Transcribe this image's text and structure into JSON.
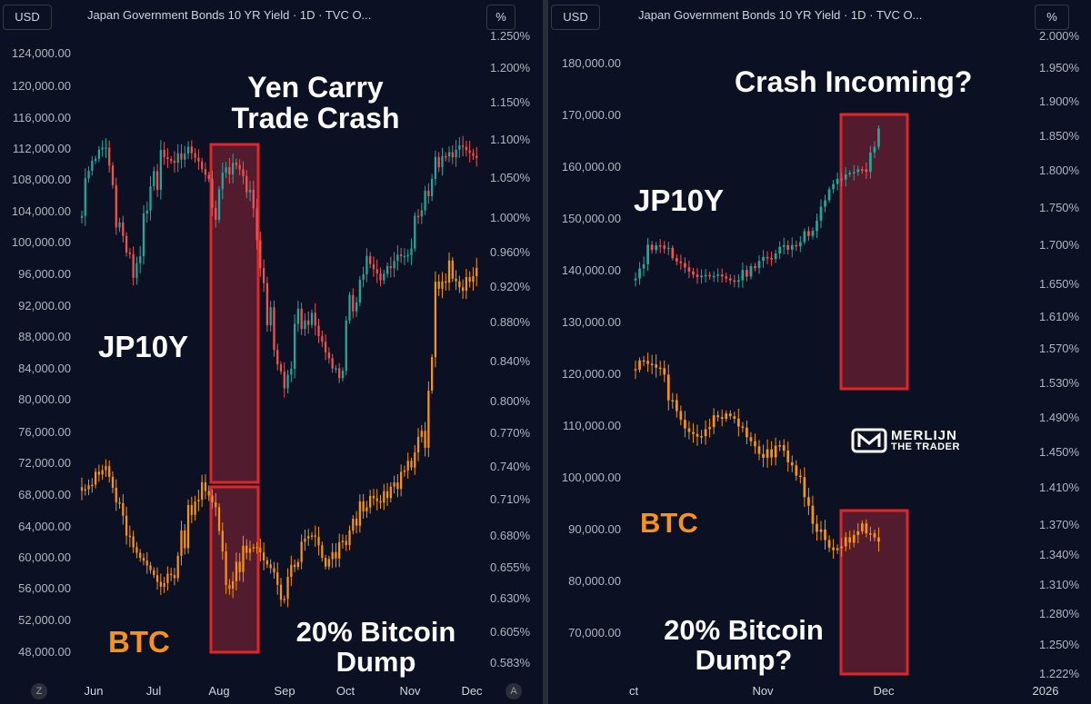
{
  "colors": {
    "background": "#0b1123",
    "btc": "#f7931a",
    "up": "#26a69a",
    "down": "#ef5350",
    "highlight_fill": "#6b1f33",
    "highlight_stroke": "#e0252b",
    "text": "#ffffff"
  },
  "chart_data": [
    {
      "type": "line",
      "panel": "left",
      "title": "Japan Government Bonds 10 YR Yield · 1D · TVC O...",
      "currency_button": "USD",
      "percent_button": "%",
      "left_axis_ticks": [
        "124,000.00",
        "120,000.00",
        "116,000.00",
        "112,000.00",
        "108,000.00",
        "104,000.00",
        "100,000.00",
        "96,000.00",
        "92,000.00",
        "88,000.00",
        "84,000.00",
        "80,000.00",
        "76,000.00",
        "72,000.00",
        "68,000.00",
        "64,000.00",
        "60,000.00",
        "56,000.00",
        "52,000.00",
        "48,000.00"
      ],
      "right_axis_ticks": [
        "1.250%",
        "1.200%",
        "1.150%",
        "1.100%",
        "1.050%",
        "1.000%",
        "0.960%",
        "0.920%",
        "0.880%",
        "0.840%",
        "0.800%",
        "0.770%",
        "0.740%",
        "0.710%",
        "0.680%",
        "0.655%",
        "0.630%",
        "0.605%",
        "0.583%"
      ],
      "x_ticks": [
        "Jun",
        "Jul",
        "Aug",
        "Sep",
        "Oct",
        "Nov",
        "Dec"
      ],
      "corner_left": "Z",
      "corner_right": "A",
      "annotations": {
        "top": "Yen Carry\nTrade Crash",
        "jp": "JP10Y",
        "btc": "BTC",
        "bottom": "20% Bitcoin\nDump"
      },
      "series": [
        {
          "name": "JP10Y",
          "axis": "right",
          "values": [
            1.0,
            1.075,
            1.09,
            0.99,
            0.935,
            1.0,
            1.08,
            1.07,
            1.09,
            1.065,
            1.005,
            1.075,
            1.055,
            0.975,
            0.875,
            0.81,
            0.875,
            0.885,
            0.85,
            0.825,
            0.905,
            0.95,
            0.93,
            0.955,
            0.955,
            1.02,
            1.065,
            1.08,
            1.09,
            1.075
          ]
        },
        {
          "name": "BTC",
          "axis": "left",
          "values": [
            69000,
            69500,
            71500,
            66000,
            61000,
            59000,
            56500,
            58000,
            66000,
            69000,
            66500,
            56000,
            60000,
            61500,
            58500,
            54000,
            60500,
            63500,
            58500,
            61000,
            64000,
            68000,
            67000,
            69000,
            72000,
            75000,
            91000,
            96000,
            94000,
            97000
          ]
        }
      ],
      "highlight_boxes": [
        {
          "series": "JP10Y",
          "label": "Yen Carry Trade Crash"
        },
        {
          "series": "BTC",
          "label": "20% Bitcoin Dump"
        }
      ]
    },
    {
      "type": "line",
      "panel": "right",
      "title": "Japan Government Bonds 10 YR Yield · 1D · TVC O...",
      "currency_button": "USD",
      "percent_button": "%",
      "left_axis_ticks": [
        "180,000.00",
        "170,000.00",
        "160,000.00",
        "150,000.00",
        "140,000.00",
        "130,000.00",
        "120,000.00",
        "110,000.00",
        "100,000.00",
        "90,000.00",
        "80,000.00",
        "70,000.00"
      ],
      "right_axis_ticks": [
        "2.000%",
        "1.950%",
        "1.900%",
        "1.850%",
        "1.800%",
        "1.750%",
        "1.700%",
        "1.650%",
        "1.610%",
        "1.570%",
        "1.530%",
        "1.490%",
        "1.450%",
        "1.410%",
        "1.370%",
        "1.340%",
        "1.310%",
        "1.280%",
        "1.250%",
        "1.222%"
      ],
      "x_ticks": [
        "ct",
        "Nov",
        "Dec",
        "2026"
      ],
      "annotations": {
        "top": "Crash Incoming?",
        "jp": "JP10Y",
        "btc": "BTC",
        "bottom": "20% Bitcoin\nDump?",
        "logo_line1": "MERLIJN",
        "logo_line2": "THE TRADER"
      },
      "series": [
        {
          "name": "JP10Y",
          "axis": "right",
          "values": [
            1.655,
            1.69,
            1.7,
            1.675,
            1.66,
            1.665,
            1.655,
            1.665,
            1.68,
            1.695,
            1.7,
            1.73,
            1.78,
            1.795,
            1.8,
            1.845
          ]
        },
        {
          "name": "BTC",
          "axis": "left",
          "values": [
            121000,
            123000,
            120000,
            110000,
            108000,
            111000,
            112000,
            108000,
            104000,
            106000,
            101000,
            92000,
            86000,
            88000,
            91000,
            87000
          ]
        }
      ],
      "highlight_boxes": [
        {
          "series": "JP10Y",
          "label": "Crash Incoming?"
        },
        {
          "series": "BTC",
          "label": "20% Bitcoin Dump?"
        }
      ]
    }
  ]
}
